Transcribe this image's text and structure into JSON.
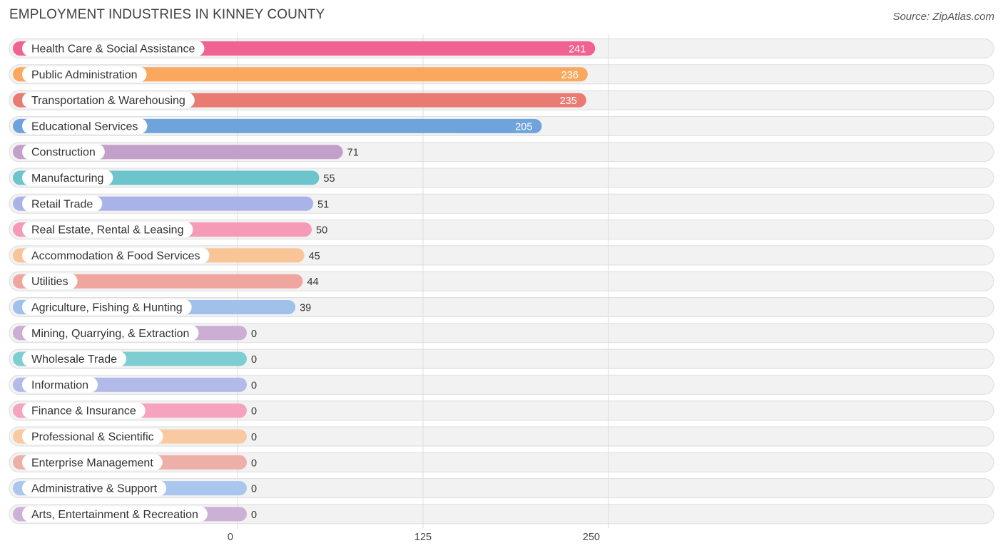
{
  "header": {
    "title": "EMPLOYMENT INDUSTRIES IN KINNEY COUNTY",
    "source": "Source: ZipAtlas.com"
  },
  "chart_data": {
    "type": "bar",
    "orientation": "horizontal",
    "title": "EMPLOYMENT INDUSTRIES IN KINNEY COUNTY",
    "xlabel": "",
    "ylabel": "",
    "xlim": [
      0,
      250
    ],
    "xticks": [
      0,
      125,
      250
    ],
    "grid": true,
    "categories": [
      "Health Care & Social Assistance",
      "Public Administration",
      "Transportation & Warehousing",
      "Educational Services",
      "Construction",
      "Manufacturing",
      "Retail Trade",
      "Real Estate, Rental & Leasing",
      "Accommodation & Food Services",
      "Utilities",
      "Agriculture, Fishing & Hunting",
      "Mining, Quarrying, & Extraction",
      "Wholesale Trade",
      "Information",
      "Finance & Insurance",
      "Professional & Scientific",
      "Enterprise Management",
      "Administrative & Support",
      "Arts, Entertainment & Recreation"
    ],
    "values": [
      241,
      236,
      235,
      205,
      71,
      55,
      51,
      50,
      45,
      44,
      39,
      0,
      0,
      0,
      0,
      0,
      0,
      0,
      0
    ],
    "colors": [
      "#f06292",
      "#f9a85d",
      "#e97b72",
      "#6fa3dc",
      "#c3a0c9",
      "#6cc5cc",
      "#a9b3e8",
      "#f59ab7",
      "#f9c596",
      "#eea69f",
      "#9fc1ea",
      "#ccadd3",
      "#7dcdd3",
      "#b2baea",
      "#f5a3bf",
      "#f9c9a1",
      "#efafa9",
      "#a9c7ee",
      "#cdb0d5"
    ]
  }
}
